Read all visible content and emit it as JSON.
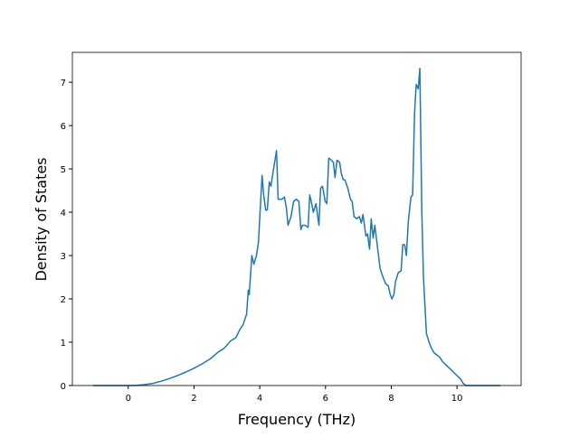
{
  "chart_data": {
    "type": "line",
    "x_label": "Frequency (THz)",
    "y_label": "Density of States",
    "xlim": [
      -1.7,
      11.95
    ],
    "ylim": [
      0,
      7.69
    ],
    "xticks": [
      0,
      2,
      4,
      6,
      8,
      10
    ],
    "yticks": [
      0,
      1,
      2,
      3,
      4,
      5,
      6,
      7
    ],
    "x": [
      -1.07,
      -0.5,
      0,
      0.2,
      0.5,
      0.75,
      1,
      1.25,
      1.5,
      1.75,
      2,
      2.25,
      2.5,
      2.75,
      2.9,
      3.0,
      3.1,
      3.2,
      3.27,
      3.4,
      3.49,
      3.6,
      3.65,
      3.68,
      3.76,
      3.82,
      3.9,
      3.96,
      4.01,
      4.07,
      4.12,
      4.18,
      4.23,
      4.29,
      4.34,
      4.42,
      4.51,
      4.56,
      4.67,
      4.75,
      4.81,
      4.86,
      4.95,
      5.03,
      5.11,
      5.19,
      5.25,
      5.3,
      5.38,
      5.47,
      5.52,
      5.58,
      5.63,
      5.71,
      5.8,
      5.85,
      5.91,
      5.99,
      6.04,
      6.1,
      6.18,
      6.24,
      6.29,
      6.35,
      6.43,
      6.48,
      6.54,
      6.59,
      6.68,
      6.76,
      6.81,
      6.87,
      6.95,
      7.03,
      7.09,
      7.14,
      7.23,
      7.28,
      7.34,
      7.39,
      7.45,
      7.5,
      7.58,
      7.66,
      7.75,
      7.83,
      7.91,
      7.97,
      8.02,
      8.08,
      8.13,
      8.21,
      8.3,
      8.35,
      8.41,
      8.46,
      8.52,
      8.6,
      8.65,
      8.71,
      8.76,
      8.82,
      8.87,
      8.93,
      8.98,
      9.07,
      9.15,
      9.23,
      9.31,
      9.4,
      9.48,
      9.56,
      9.7,
      9.84,
      9.97,
      10.11,
      10.19,
      10.27,
      11.32
    ],
    "series": [
      {
        "color": "#1f77b4",
        "values": [
          0,
          0,
          0,
          0,
          0.02,
          0.05,
          0.1,
          0.16,
          0.23,
          0.31,
          0.4,
          0.5,
          0.62,
          0.78,
          0.85,
          0.93,
          1.02,
          1.07,
          1.1,
          1.3,
          1.4,
          1.65,
          2.2,
          2.1,
          3.0,
          2.8,
          3.0,
          3.3,
          4.0,
          4.85,
          4.4,
          4.05,
          4.05,
          4.7,
          4.6,
          5.0,
          5.42,
          4.3,
          4.3,
          4.35,
          4.1,
          3.7,
          3.9,
          4.25,
          4.3,
          4.25,
          3.6,
          3.7,
          3.7,
          3.65,
          4.4,
          4.2,
          4.0,
          4.2,
          3.7,
          4.55,
          4.6,
          4.25,
          4.2,
          5.25,
          5.2,
          5.15,
          4.8,
          5.2,
          5.15,
          4.9,
          4.75,
          4.75,
          4.55,
          4.3,
          4.25,
          3.9,
          3.85,
          3.9,
          3.75,
          3.95,
          3.45,
          3.5,
          3.15,
          3.85,
          3.4,
          3.7,
          3.2,
          2.7,
          2.5,
          2.35,
          2.3,
          2.1,
          2.0,
          2.1,
          2.4,
          2.6,
          2.65,
          3.25,
          3.25,
          3.0,
          3.8,
          4.35,
          4.4,
          6.3,
          6.95,
          6.85,
          7.32,
          4.0,
          2.5,
          1.2,
          1.0,
          0.85,
          0.75,
          0.7,
          0.65,
          0.55,
          0.45,
          0.35,
          0.25,
          0.15,
          0.05,
          0,
          0
        ]
      }
    ]
  }
}
